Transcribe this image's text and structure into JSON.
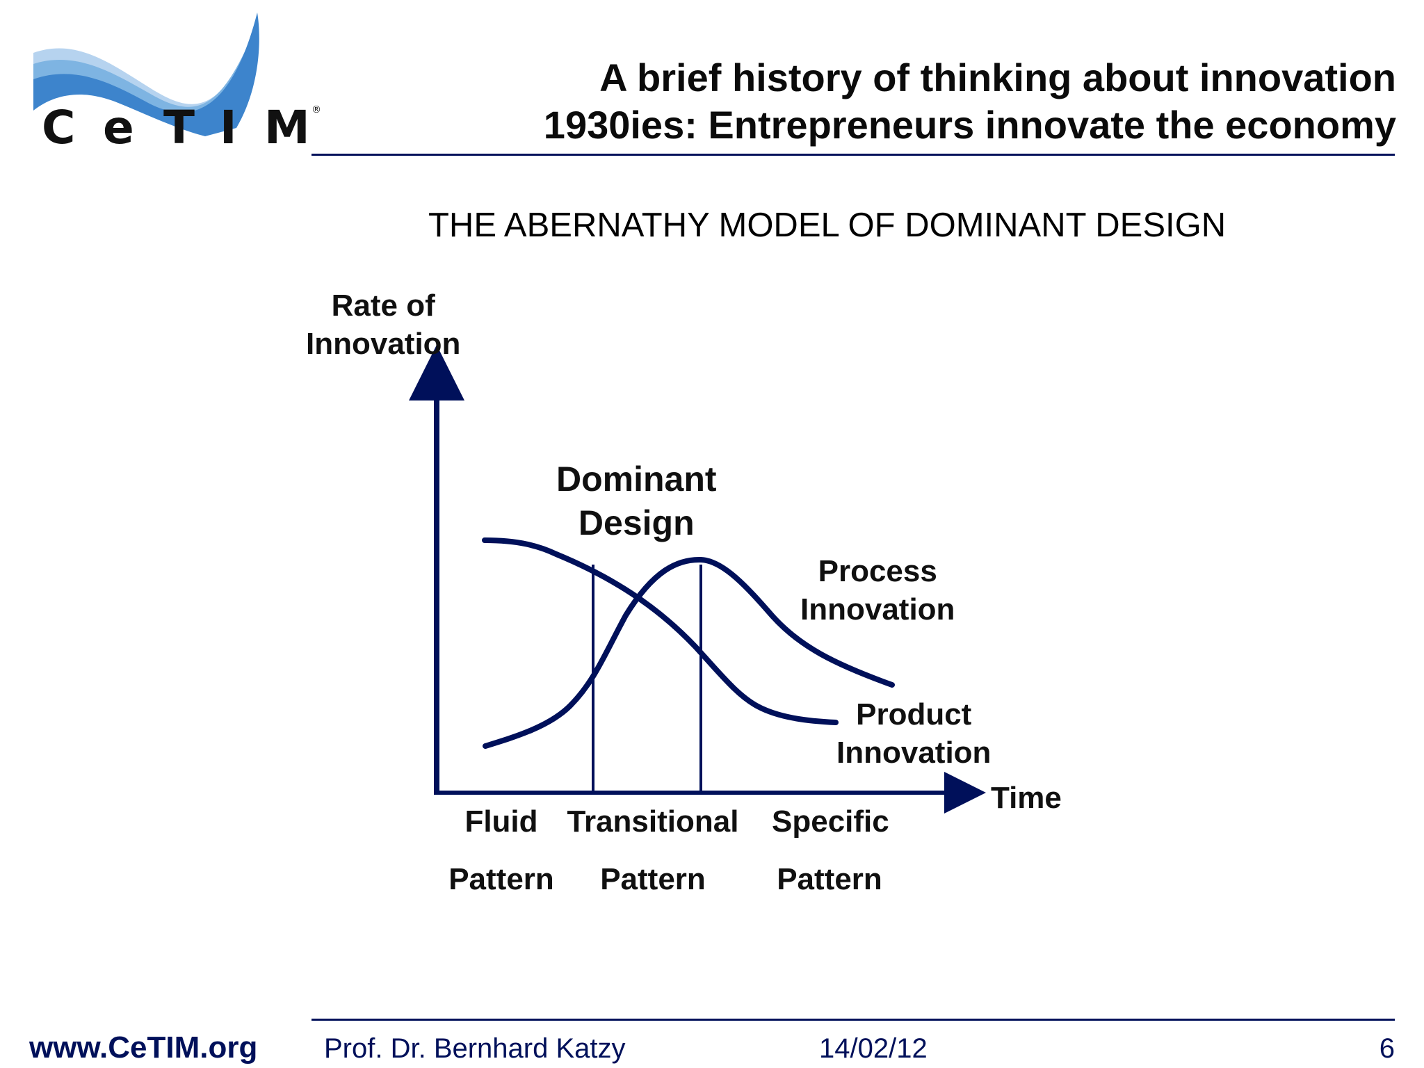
{
  "logo": {
    "text": "CeTIM",
    "letters": [
      "C",
      "e",
      "T",
      "I",
      "M"
    ],
    "registered_mark": "®"
  },
  "header": {
    "title_line1": "A brief history of thinking about innovation",
    "title_line2": "1930ies: Entrepreneurs innovate the economy"
  },
  "slide": {
    "subtitle": "THE ABERNATHY MODEL OF DOMINANT DESIGN"
  },
  "diagram": {
    "y_axis_label_line1": "Rate of",
    "y_axis_label_line2": "Innovation",
    "x_axis_label": "Time",
    "dominant_design_line1": "Dominant",
    "dominant_design_line2": "Design",
    "process_line1": "Process",
    "process_line2": "Innovation",
    "product_line1": "Product",
    "product_line2": "Innovation",
    "phases": [
      {
        "line1": "Fluid",
        "line2": "Pattern"
      },
      {
        "line1": "Transitional",
        "line2": "Pattern"
      },
      {
        "line1": "Specific",
        "line2": "Pattern"
      }
    ]
  },
  "footer": {
    "url": "www.CeTIM.org",
    "author": "Prof. Dr. Bernhard Katzy",
    "date": "14/02/12",
    "page_number": "6"
  },
  "colors": {
    "navy": "#00105a",
    "wave_light": "#b6d3ef",
    "wave_mid": "#7eb4e2",
    "wave_dark": "#3d84cc"
  }
}
